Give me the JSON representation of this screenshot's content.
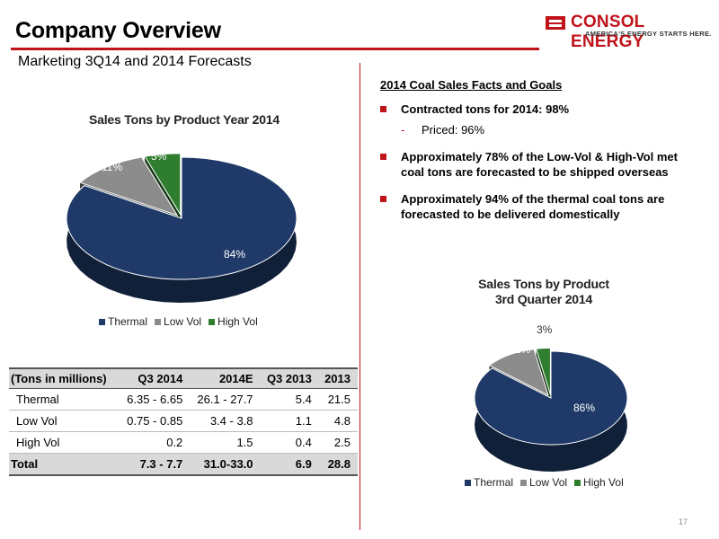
{
  "header": {
    "title": "Company Overview",
    "subtitle": "Marketing 3Q14 and 2014 Forecasts",
    "logo_text": "CONSOL ENERGY",
    "logo_tagline": "AMERICA'S ENERGY STARTS HERE."
  },
  "colors": {
    "accent": "#c0141b",
    "thermal": "#1f3a68",
    "low_vol": "#8c8c8c",
    "high_vol": "#2f7d2f"
  },
  "chart_data": [
    {
      "type": "pie",
      "title": "Sales Tons by Product Year 2014",
      "categories": [
        "Thermal",
        "Low Vol",
        "High Vol"
      ],
      "values": [
        84,
        11,
        5
      ],
      "data_labels": [
        "84%",
        "11%",
        "5%"
      ],
      "legend": [
        "Thermal",
        "Low Vol",
        "High Vol"
      ],
      "legend_position": "bottom"
    },
    {
      "type": "pie",
      "title": "Sales Tons by Product 3rd Quarter 2014",
      "title_lines": [
        "Sales Tons by Product",
        "3rd Quarter 2014"
      ],
      "categories": [
        "Thermal",
        "Low Vol",
        "High Vol"
      ],
      "values": [
        86,
        11,
        3
      ],
      "data_labels": [
        "86%",
        "11%",
        "3%"
      ],
      "legend": [
        "Thermal",
        "Low Vol",
        "High Vol"
      ],
      "legend_position": "bottom"
    }
  ],
  "facts": {
    "title": "2014 Coal Sales Facts and Goals",
    "bullet1": "Contracted tons for 2014: 98%",
    "sub_dash": "-",
    "sub1": "Priced: 96%",
    "bullet2": "Approximately 78% of the Low-Vol & High-Vol met coal tons are forecasted to be shipped overseas",
    "bullet3": "Approximately 94% of the thermal coal tons are forecasted to be delivered domestically"
  },
  "table": {
    "headers": [
      "(Tons in millions)",
      "Q3 2014",
      "2014E",
      "Q3 2013",
      "2013"
    ],
    "rows": [
      [
        "Thermal",
        "6.35 - 6.65",
        "26.1 - 27.7",
        "5.4",
        "21.5"
      ],
      [
        "Low Vol",
        "0.75 - 0.85",
        "3.4 - 3.8",
        "1.1",
        "4.8"
      ],
      [
        "High Vol",
        "0.2",
        "1.5",
        "0.4",
        "2.5"
      ]
    ],
    "total": [
      "Total",
      "7.3 - 7.7",
      "31.0-33.0",
      "6.9",
      "28.8"
    ]
  },
  "page_number": "17"
}
